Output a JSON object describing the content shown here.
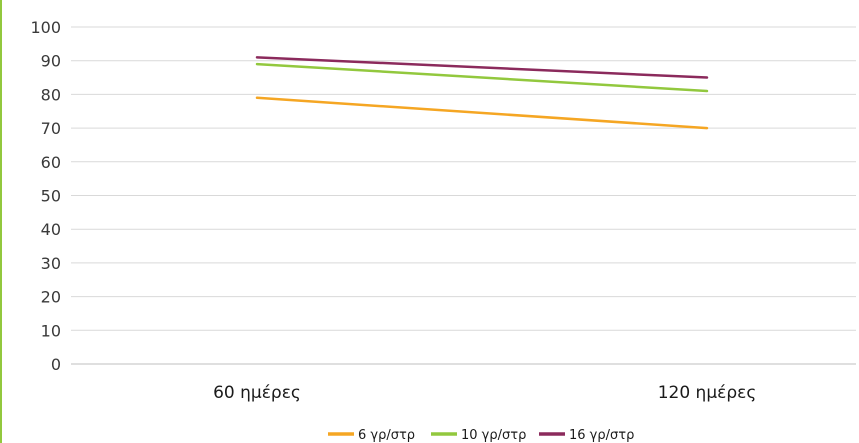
{
  "chart_data": {
    "type": "line",
    "categories": [
      "60 ημέρες",
      "120 ημέρες"
    ],
    "series": [
      {
        "name": "6 γρ/στρ",
        "color": "#F5A623",
        "values": [
          79,
          70
        ]
      },
      {
        "name": "10 γρ/στρ",
        "color": "#92C83E",
        "values": [
          89,
          81
        ]
      },
      {
        "name": "16 γρ/στρ",
        "color": "#8B2A5C",
        "values": [
          91,
          85
        ]
      }
    ],
    "ylim": [
      0,
      100
    ],
    "yticks": [
      "0",
      "10",
      "20",
      "30",
      "40",
      "50",
      "60",
      "70",
      "80",
      "90",
      "100"
    ],
    "grid": true,
    "legend_position": "bottom",
    "accent_border_color": "#92C83E"
  }
}
